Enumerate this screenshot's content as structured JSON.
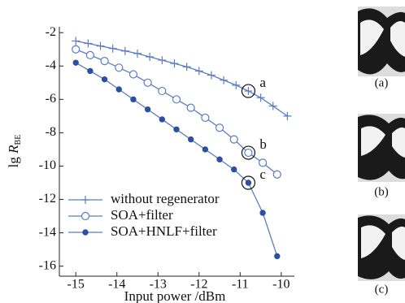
{
  "chart_data": {
    "type": "line",
    "xlabel": "Input power /dBm",
    "ylabel": {
      "prefix": "lg ",
      "var": "R",
      "sub": "BE"
    },
    "xlim": [
      -15.4,
      -9.68
    ],
    "ylim": [
      -16.6,
      -1.65
    ],
    "xticks": [
      -15,
      -14,
      -13,
      -12,
      -11,
      -10
    ],
    "yticks": [
      -2,
      -4,
      -6,
      -8,
      -10,
      -12,
      -14,
      -16
    ],
    "legend": "lower left",
    "series": [
      {
        "name": "without regenerator",
        "color": "#5b7cc4",
        "marker": "plus",
        "x": [
          -15,
          -14.7,
          -14.4,
          -14.1,
          -13.8,
          -13.5,
          -13.2,
          -12.9,
          -12.6,
          -12.3,
          -12.0,
          -11.7,
          -11.4,
          -11.1,
          -10.8,
          -10.5,
          -10.2,
          -9.85
        ],
        "values": [
          -2.5,
          -2.65,
          -2.8,
          -2.95,
          -3.1,
          -3.25,
          -3.45,
          -3.65,
          -3.85,
          -4.05,
          -4.3,
          -4.55,
          -4.85,
          -5.15,
          -5.5,
          -5.9,
          -6.4,
          -7.0
        ]
      },
      {
        "name": "SOA+filter",
        "color": "#5b7cc4",
        "marker": "open-circle",
        "x": [
          -15,
          -14.65,
          -14.3,
          -13.95,
          -13.6,
          -13.25,
          -12.9,
          -12.55,
          -12.2,
          -11.85,
          -11.5,
          -11.15,
          -10.8,
          -10.45,
          -10.1
        ],
        "values": [
          -3.0,
          -3.35,
          -3.7,
          -4.1,
          -4.5,
          -5.0,
          -5.5,
          -6.0,
          -6.5,
          -7.1,
          -7.7,
          -8.4,
          -9.2,
          -9.8,
          -10.5
        ]
      },
      {
        "name": "SOA+HNLF+filter",
        "color": "#5b7cc4",
        "marker": "filled-circle",
        "x": [
          -15,
          -14.65,
          -14.3,
          -13.95,
          -13.6,
          -13.25,
          -12.9,
          -12.55,
          -12.2,
          -11.85,
          -11.5,
          -11.15,
          -10.8,
          -10.45,
          -10.1
        ],
        "values": [
          -3.8,
          -4.3,
          -4.8,
          -5.4,
          -6.0,
          -6.6,
          -7.2,
          -7.8,
          -8.4,
          -9.0,
          -9.6,
          -10.2,
          -11.0,
          -12.8,
          -15.4
        ]
      }
    ],
    "annotations": [
      {
        "text": "a",
        "x": -10.8,
        "y": -5.5
      },
      {
        "text": "b",
        "x": -10.8,
        "y": -9.2
      },
      {
        "text": "c",
        "x": -10.8,
        "y": -11.0
      }
    ]
  },
  "panels": [
    "(a)",
    "(b)",
    "(c)"
  ]
}
